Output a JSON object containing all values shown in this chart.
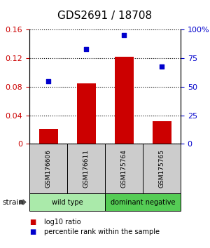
{
  "title": "GDS2691 / 18708",
  "samples": [
    "GSM176606",
    "GSM176611",
    "GSM175764",
    "GSM175765"
  ],
  "bar_values": [
    0.021,
    0.085,
    0.122,
    0.032
  ],
  "scatter_values": [
    0.088,
    0.133,
    0.153,
    0.108
  ],
  "ylim_left": [
    0,
    0.16
  ],
  "ylim_right": [
    0,
    100
  ],
  "yticks_left": [
    0,
    0.04,
    0.08,
    0.12,
    0.16
  ],
  "yticks_right": [
    0,
    25,
    50,
    75,
    100
  ],
  "ytick_labels_left": [
    "0",
    "0.04",
    "0.08",
    "0.12",
    "0.16"
  ],
  "ytick_labels_right": [
    "0",
    "25",
    "50",
    "75",
    "100%"
  ],
  "bar_color": "#cc0000",
  "scatter_color": "#0000cc",
  "groups": [
    {
      "label": "wild type",
      "samples": [
        0,
        1
      ],
      "color": "#aaeaaa"
    },
    {
      "label": "dominant negative",
      "samples": [
        2,
        3
      ],
      "color": "#55cc55"
    }
  ],
  "legend_bar_label": "log10 ratio",
  "legend_scatter_label": "percentile rank within the sample",
  "strain_label": "strain",
  "background_color": "#ffffff",
  "sample_box_color": "#cccccc",
  "title_fontsize": 11,
  "tick_fontsize": 8,
  "bar_width": 0.5
}
